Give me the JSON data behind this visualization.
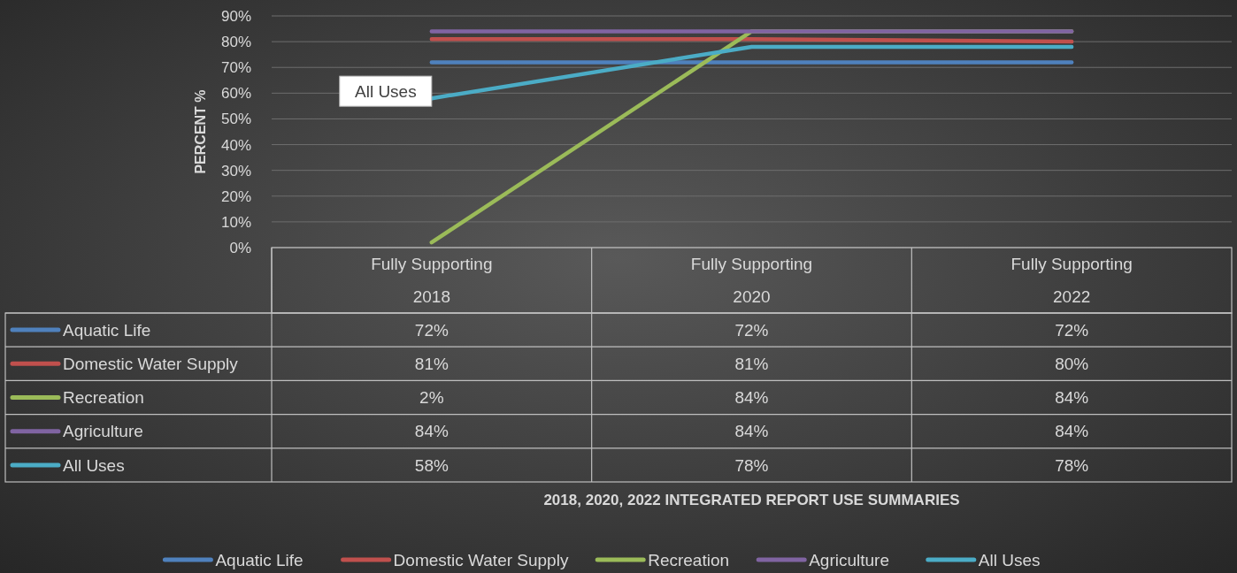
{
  "chart_data": {
    "type": "line",
    "categories": [
      "Fully Supporting\n2018",
      "Fully Supporting\n2020",
      "Fully Supporting\n2022"
    ],
    "series": [
      {
        "name": "Aquatic Life",
        "color": "#4f81bd",
        "values": [
          72,
          72,
          72
        ],
        "value_labels": [
          "72%",
          "72%",
          "72%"
        ]
      },
      {
        "name": "Domestic Water Supply",
        "color": "#c0504d",
        "values": [
          81,
          81,
          80
        ],
        "value_labels": [
          "81%",
          "81%",
          "80%"
        ]
      },
      {
        "name": "Recreation",
        "color": "#9bbb59",
        "values": [
          2,
          84,
          84
        ],
        "value_labels": [
          "2%",
          "84%",
          "84%"
        ]
      },
      {
        "name": "Agriculture",
        "color": "#8064a2",
        "values": [
          84,
          84,
          84
        ],
        "value_labels": [
          "84%",
          "84%",
          "84%"
        ]
      },
      {
        "name": "All Uses",
        "color": "#4bacc6",
        "values": [
          58,
          78,
          78
        ],
        "value_labels": [
          "58%",
          "78%",
          "78%"
        ]
      }
    ],
    "ylim": [
      0,
      90
    ],
    "yticks": [
      {
        "value": 0,
        "label": "0%"
      },
      {
        "value": 10,
        "label": "10%"
      },
      {
        "value": 20,
        "label": "20%"
      },
      {
        "value": 30,
        "label": "30%"
      },
      {
        "value": 40,
        "label": "40%"
      },
      {
        "value": 50,
        "label": "50%"
      },
      {
        "value": 60,
        "label": "60%"
      },
      {
        "value": 70,
        "label": "70%"
      },
      {
        "value": 80,
        "label": "80%"
      },
      {
        "value": 90,
        "label": "90%"
      }
    ],
    "grid": "y",
    "legend": "bottom",
    "ylabel": "PERCENT %",
    "annotations": [
      "2018, 2020, 2022 INTEGRATED REPORT USE SUMMARIES",
      {
        "text": "All Uses",
        "x": "Fully Supporting\n2018",
        "y": 58
      }
    ]
  }
}
